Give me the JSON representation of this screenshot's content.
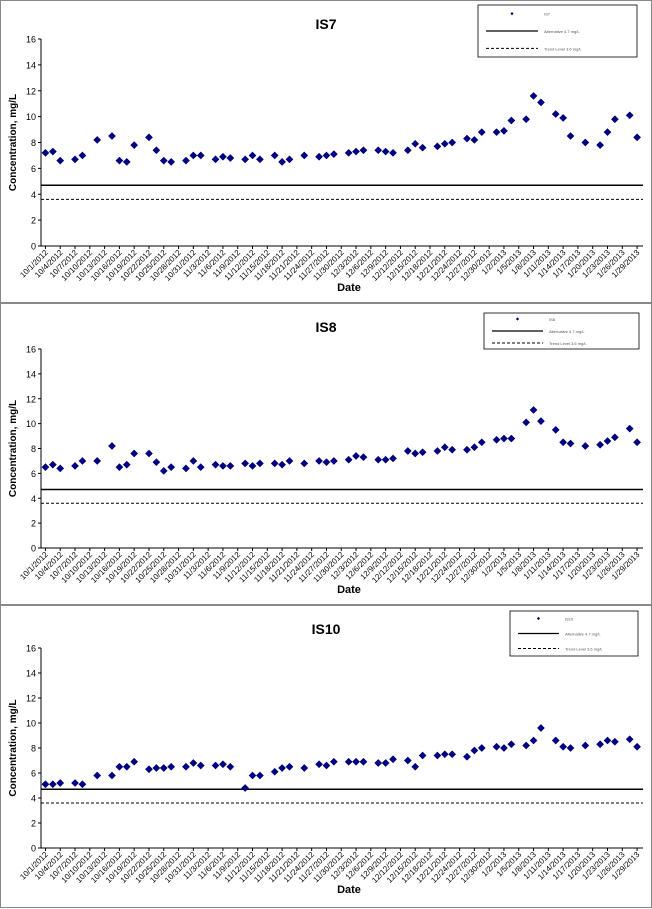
{
  "chart_data": [
    {
      "type": "scatter",
      "title": "IS7",
      "xlabel": "Date",
      "ylabel": "Concentration, mg/L",
      "ylim": [
        0,
        16
      ],
      "yticks": [
        "0",
        "2",
        "4",
        "6",
        "8",
        "10",
        "12",
        "14",
        "16"
      ],
      "grid": false,
      "legend_position": "top-right",
      "legend": [
        "IS7",
        "Alternative 4.7 mg/L",
        "Trend Level 3.6 mg/L"
      ],
      "xticks": [
        "10/1/2012",
        "10/4/2012",
        "10/7/2012",
        "10/10/2012",
        "10/13/2012",
        "10/16/2012",
        "10/19/2012",
        "10/22/2012",
        "10/25/2012",
        "10/28/2012",
        "10/31/2012",
        "11/3/2012",
        "11/6/2012",
        "11/9/2012",
        "11/12/2012",
        "11/15/2012",
        "11/18/2012",
        "11/21/2012",
        "11/24/2012",
        "11/27/2012",
        "11/30/2012",
        "12/3/2012",
        "12/6/2012",
        "12/9/2012",
        "12/12/2012",
        "12/15/2012",
        "12/18/2012",
        "12/21/2012",
        "12/24/2012",
        "12/27/2012",
        "12/30/2012",
        "1/2/2013",
        "1/5/2013",
        "1/8/2013",
        "1/11/2013",
        "1/14/2013",
        "1/17/2013",
        "1/20/2013",
        "1/23/2013",
        "1/26/2013",
        "1/29/2013"
      ],
      "hlines": [
        4.7,
        3.6
      ],
      "series": [
        {
          "name": "IS7",
          "color": "#000080",
          "x": [
            1,
            2,
            3,
            5,
            6,
            8,
            10,
            11,
            12,
            13,
            15,
            16,
            17,
            18,
            20,
            21,
            22,
            24,
            25,
            26,
            28,
            29,
            30,
            32,
            33,
            34,
            36,
            38,
            39,
            40,
            42,
            43,
            44,
            46,
            47,
            48,
            50,
            51,
            52,
            54,
            55,
            56,
            58,
            59,
            60,
            62,
            63,
            64,
            66,
            67,
            68,
            70,
            71,
            72,
            74,
            76,
            77,
            78,
            80,
            81
          ],
          "y": [
            7.2,
            7.3,
            6.6,
            6.7,
            7.0,
            8.2,
            8.5,
            6.6,
            6.5,
            7.8,
            8.4,
            7.4,
            6.6,
            6.5,
            6.6,
            7.0,
            7.0,
            6.7,
            6.9,
            6.8,
            6.7,
            7.0,
            6.7,
            7.0,
            6.5,
            6.7,
            7.0,
            6.9,
            7.0,
            7.1,
            7.2,
            7.3,
            7.4,
            7.4,
            7.3,
            7.2,
            7.4,
            7.9,
            7.6,
            7.7,
            7.9,
            8.0,
            8.3,
            8.2,
            8.8,
            8.8,
            8.9,
            9.7,
            9.8,
            11.6,
            11.1,
            10.2,
            9.9,
            8.5,
            8.0,
            7.8,
            8.8,
            9.8,
            10.1,
            8.4
          ]
        }
      ]
    },
    {
      "type": "scatter",
      "title": "IS8",
      "xlabel": "Date",
      "ylabel": "Concentration, mg/L",
      "ylim": [
        0,
        16
      ],
      "yticks": [
        "0",
        "2",
        "4",
        "6",
        "8",
        "10",
        "12",
        "14",
        "16"
      ],
      "grid": false,
      "legend_position": "top-right",
      "legend": [
        "IS8",
        "Alternative 4.7 mg/L",
        "Trend Level 3.6 mg/L"
      ],
      "xticks": [
        "10/1/2012",
        "10/4/2012",
        "10/7/2012",
        "10/10/2012",
        "10/13/2012",
        "10/16/2012",
        "10/19/2012",
        "10/22/2012",
        "10/25/2012",
        "10/28/2012",
        "10/31/2012",
        "11/3/2012",
        "11/6/2012",
        "11/9/2012",
        "11/12/2012",
        "11/15/2012",
        "11/18/2012",
        "11/21/2012",
        "11/24/2012",
        "11/27/2012",
        "11/30/2012",
        "12/3/2012",
        "12/6/2012",
        "12/9/2012",
        "12/12/2012",
        "12/15/2012",
        "12/18/2012",
        "12/21/2012",
        "12/24/2012",
        "12/27/2012",
        "12/30/2012",
        "1/2/2013",
        "1/5/2013",
        "1/8/2013",
        "1/11/2013",
        "1/14/2013",
        "1/17/2013",
        "1/20/2013",
        "1/23/2013",
        "1/26/2013",
        "1/29/2013"
      ],
      "hlines": [
        4.7,
        3.6
      ],
      "series": [
        {
          "name": "IS8",
          "color": "#000080",
          "x": [
            1,
            2,
            3,
            5,
            6,
            8,
            10,
            11,
            12,
            13,
            15,
            16,
            17,
            18,
            20,
            21,
            22,
            24,
            25,
            26,
            28,
            29,
            30,
            32,
            33,
            34,
            36,
            38,
            39,
            40,
            42,
            43,
            44,
            46,
            47,
            48,
            50,
            51,
            52,
            54,
            55,
            56,
            58,
            59,
            60,
            62,
            63,
            64,
            66,
            67,
            68,
            70,
            71,
            72,
            74,
            76,
            77,
            78,
            80,
            81
          ],
          "y": [
            6.5,
            6.7,
            6.4,
            6.6,
            7.0,
            7.0,
            8.2,
            6.5,
            6.7,
            7.6,
            7.6,
            6.9,
            6.2,
            6.5,
            6.4,
            7.0,
            6.5,
            6.7,
            6.6,
            6.6,
            6.8,
            6.6,
            6.8,
            6.8,
            6.7,
            7.0,
            6.8,
            7.0,
            6.9,
            7.0,
            7.1,
            7.4,
            7.3,
            7.1,
            7.1,
            7.2,
            7.8,
            7.6,
            7.7,
            7.8,
            8.1,
            7.9,
            7.9,
            8.1,
            8.5,
            8.7,
            8.8,
            8.8,
            10.1,
            11.1,
            10.2,
            9.5,
            8.5,
            8.4,
            8.2,
            8.3,
            8.6,
            8.9,
            9.6,
            8.5
          ]
        }
      ]
    },
    {
      "type": "scatter",
      "title": "IS10",
      "xlabel": "Date",
      "ylabel": "Concentration, mg/L",
      "ylim": [
        0,
        16
      ],
      "yticks": [
        "0",
        "2",
        "4",
        "6",
        "8",
        "10",
        "12",
        "14",
        "16"
      ],
      "grid": false,
      "legend_position": "top-right",
      "legend": [
        "IS10",
        "Alternative 4.7 mg/L",
        "Trend Level 3.6 mg/L"
      ],
      "xticks": [
        "10/1/2012",
        "10/4/2012",
        "10/7/2012",
        "10/10/2012",
        "10/13/2012",
        "10/16/2012",
        "10/19/2012",
        "10/22/2012",
        "10/25/2012",
        "10/28/2012",
        "10/31/2012",
        "11/3/2012",
        "11/6/2012",
        "11/9/2012",
        "11/12/2012",
        "11/15/2012",
        "11/18/2012",
        "11/21/2012",
        "11/24/2012",
        "11/27/2012",
        "11/30/2012",
        "12/3/2012",
        "12/6/2012",
        "12/9/2012",
        "12/12/2012",
        "12/15/2012",
        "12/18/2012",
        "12/21/2012",
        "12/24/2012",
        "12/27/2012",
        "12/30/2012",
        "1/2/2013",
        "1/5/2013",
        "1/8/2013",
        "1/11/2013",
        "1/14/2013",
        "1/17/2013",
        "1/20/2013",
        "1/23/2013",
        "1/26/2013",
        "1/29/2013"
      ],
      "hlines": [
        4.7,
        3.6
      ],
      "series": [
        {
          "name": "IS10",
          "color": "#000080",
          "x": [
            1,
            2,
            3,
            5,
            6,
            8,
            10,
            11,
            12,
            13,
            15,
            16,
            17,
            18,
            20,
            21,
            22,
            24,
            25,
            26,
            28,
            29,
            30,
            32,
            33,
            34,
            36,
            38,
            39,
            40,
            42,
            43,
            44,
            46,
            47,
            48,
            50,
            51,
            52,
            54,
            55,
            56,
            58,
            59,
            60,
            62,
            63,
            64,
            66,
            67,
            68,
            70,
            71,
            72,
            74,
            76,
            77,
            78,
            80,
            81
          ],
          "y": [
            5.1,
            5.1,
            5.2,
            5.2,
            5.1,
            5.8,
            5.8,
            6.5,
            6.5,
            6.9,
            6.3,
            6.4,
            6.4,
            6.5,
            6.5,
            6.8,
            6.6,
            6.6,
            6.7,
            6.5,
            4.8,
            5.8,
            5.8,
            6.1,
            6.4,
            6.5,
            6.4,
            6.7,
            6.6,
            6.9,
            6.9,
            6.9,
            6.9,
            6.8,
            6.8,
            7.1,
            7.0,
            6.5,
            7.4,
            7.4,
            7.5,
            7.5,
            7.3,
            7.8,
            8.0,
            8.1,
            8.0,
            8.3,
            8.2,
            8.6,
            9.6,
            8.6,
            8.1,
            8.0,
            8.2,
            8.3,
            8.6,
            8.5,
            8.7,
            8.1
          ]
        }
      ]
    }
  ]
}
